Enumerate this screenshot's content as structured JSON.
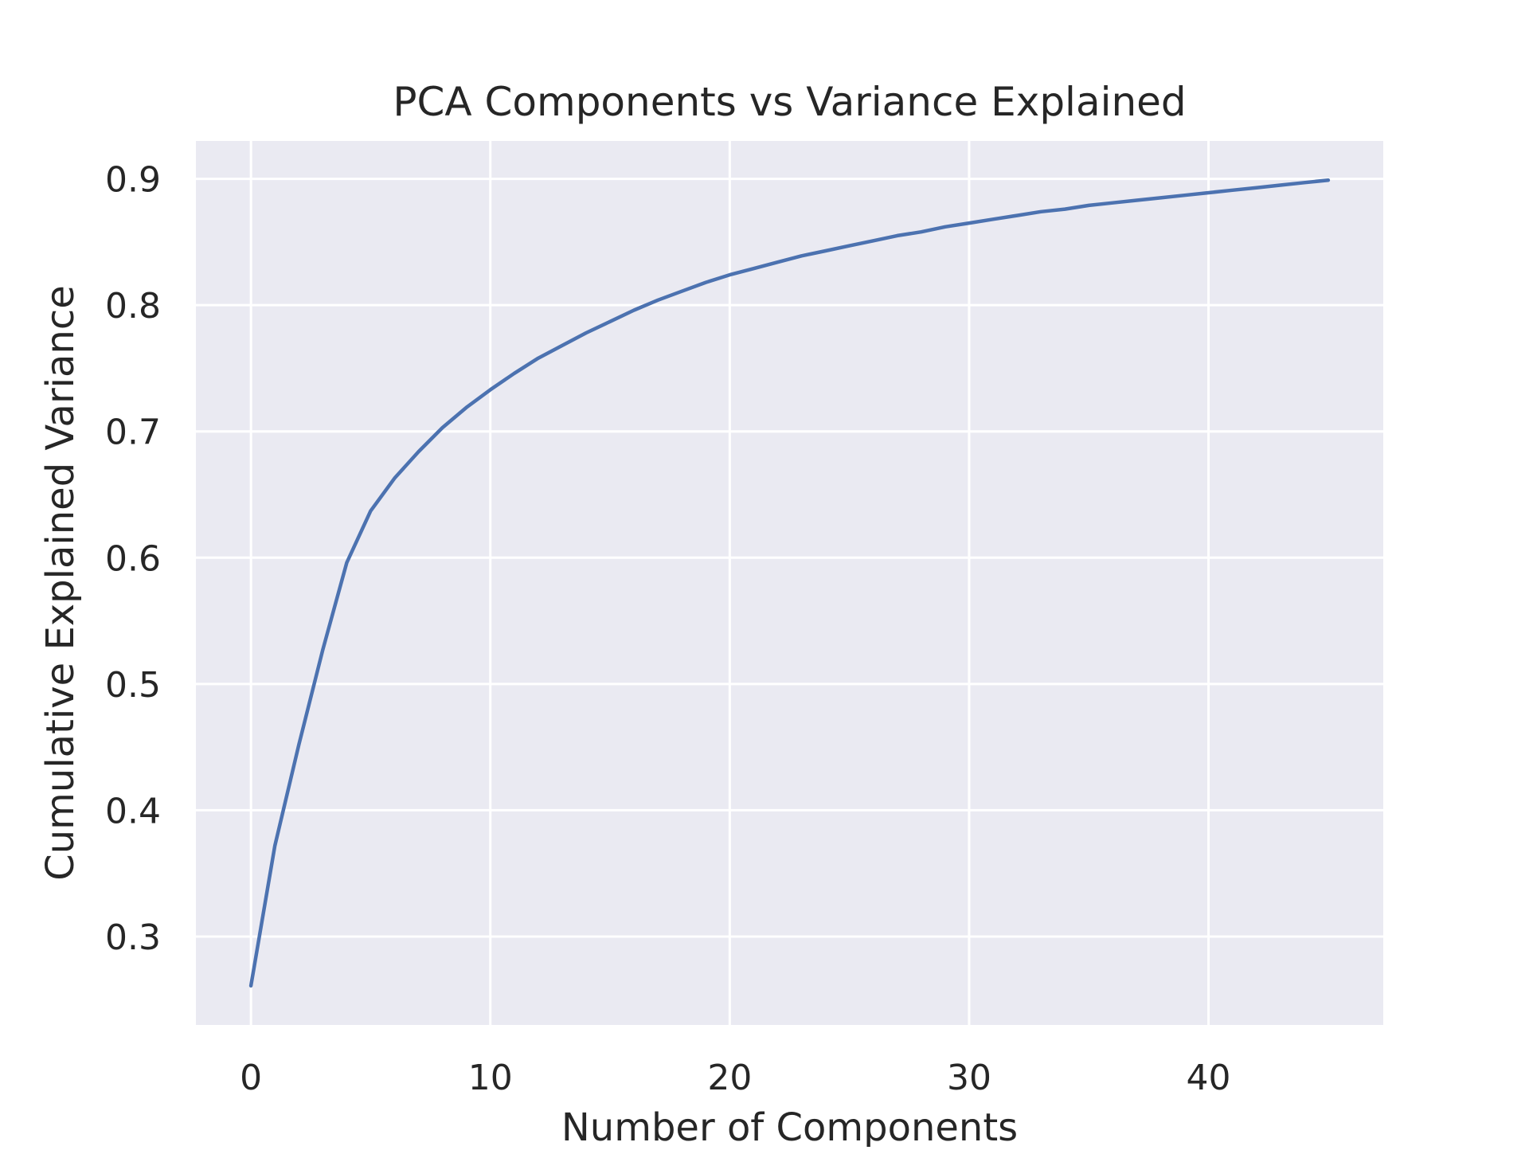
{
  "chart_data": {
    "type": "line",
    "title": "PCA Components vs Variance Explained",
    "xlabel": "Number of Components",
    "ylabel": "Cumulative Explained Variance",
    "xlim": [
      -2.3,
      47.3
    ],
    "ylim": [
      0.23,
      0.93
    ],
    "xticks": [
      0,
      10,
      20,
      30,
      40
    ],
    "yticks": [
      0.3,
      0.4,
      0.5,
      0.6,
      0.7,
      0.8,
      0.9
    ],
    "grid": true,
    "legend": "none",
    "colors": {
      "background": "#eaeaf2",
      "grid": "#ffffff",
      "line": "#4c72b0",
      "text": "#262626"
    },
    "series": [
      {
        "x": [
          0,
          1,
          2,
          3,
          4,
          5,
          6,
          7,
          8,
          9,
          10,
          11,
          12,
          13,
          14,
          15,
          16,
          17,
          18,
          19,
          20,
          21,
          22,
          23,
          24,
          25,
          26,
          27,
          28,
          29,
          30,
          31,
          32,
          33,
          34,
          35,
          36,
          37,
          38,
          39,
          40,
          41,
          42,
          43,
          44,
          45
        ],
        "values": [
          0.261,
          0.372,
          0.452,
          0.527,
          0.596,
          0.637,
          0.663,
          0.684,
          0.703,
          0.719,
          0.733,
          0.746,
          0.758,
          0.768,
          0.778,
          0.787,
          0.796,
          0.804,
          0.811,
          0.818,
          0.824,
          0.829,
          0.834,
          0.839,
          0.843,
          0.847,
          0.851,
          0.855,
          0.858,
          0.862,
          0.865,
          0.868,
          0.871,
          0.874,
          0.876,
          0.879,
          0.881,
          0.883,
          0.885,
          0.887,
          0.889,
          0.891,
          0.893,
          0.895,
          0.897,
          0.899
        ]
      }
    ]
  }
}
